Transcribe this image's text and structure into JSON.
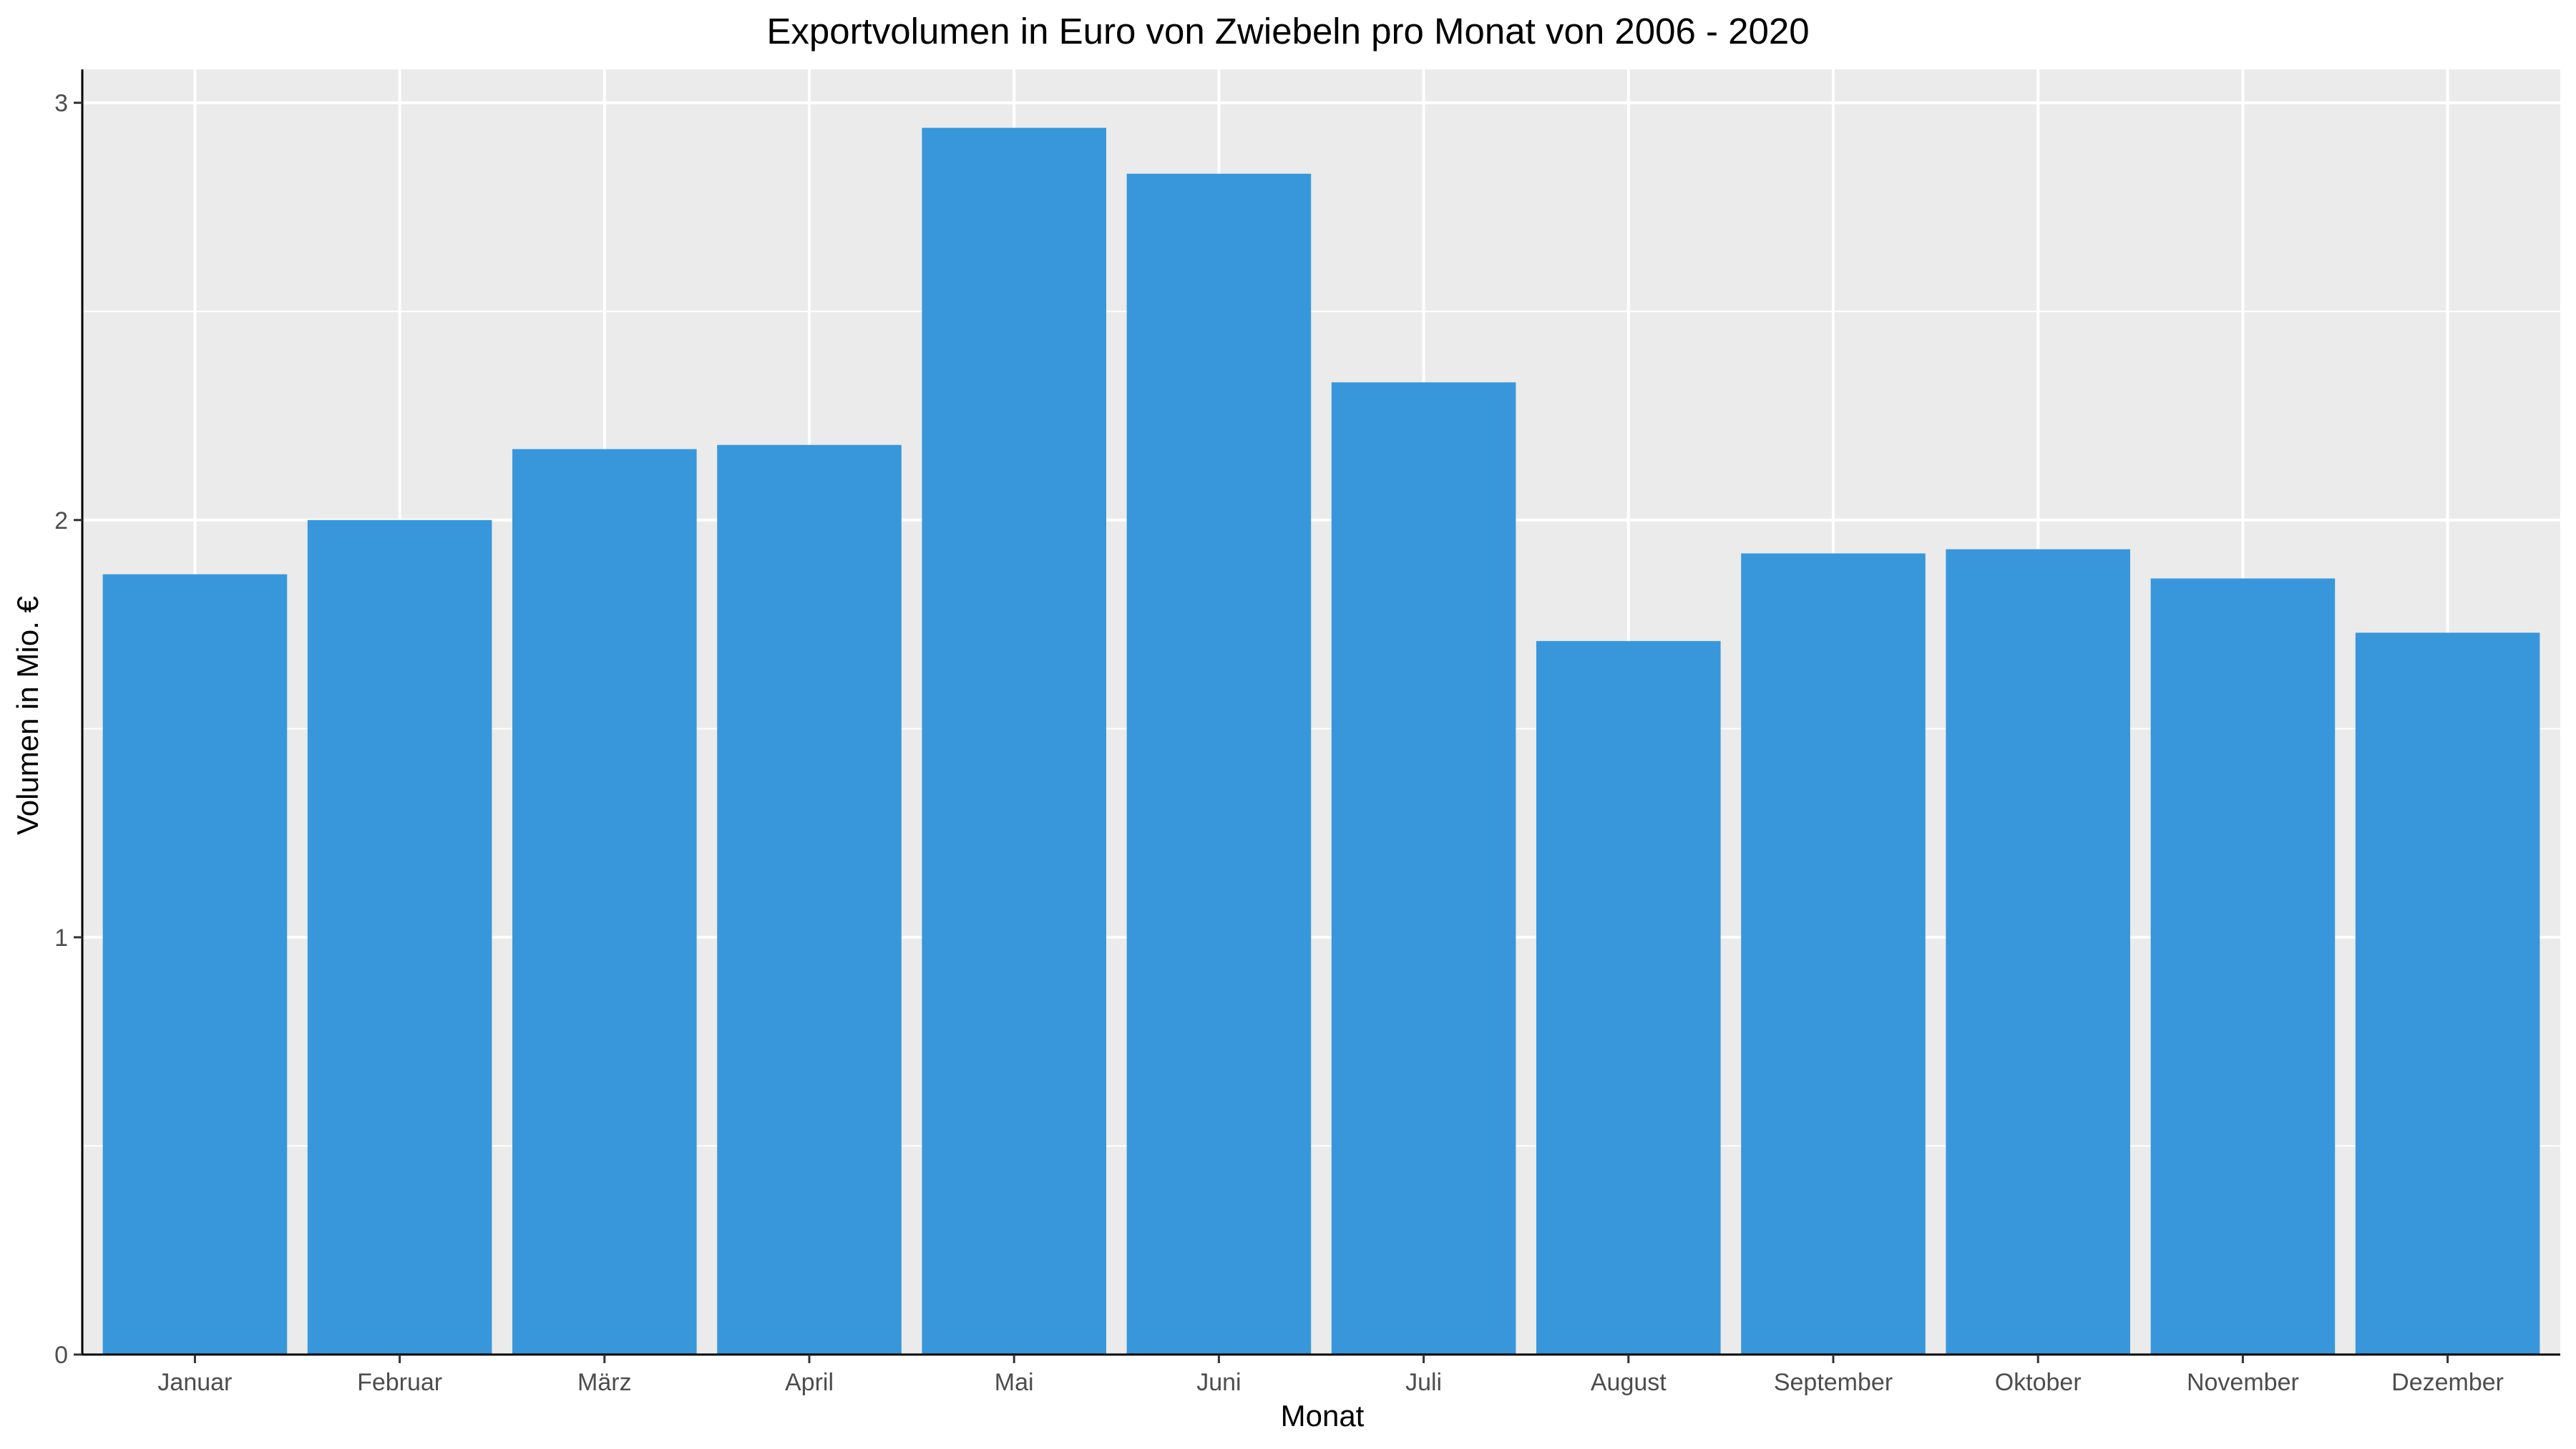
{
  "chart_data": {
    "type": "bar",
    "title": "Exportvolumen in Euro von Zwiebeln pro Monat von 2006 - 2020",
    "xlabel": "Monat",
    "ylabel": "Volumen in Mio. €",
    "categories": [
      "Januar",
      "Februar",
      "März",
      "April",
      "Mai",
      "Juni",
      "Juli",
      "August",
      "September",
      "Oktober",
      "November",
      "Dezember"
    ],
    "values": [
      1.87,
      2.0,
      2.17,
      2.18,
      2.94,
      2.83,
      2.33,
      1.71,
      1.92,
      1.93,
      1.86,
      1.73
    ],
    "ylim": [
      0,
      3.08
    ],
    "yticks": [
      0,
      1,
      2,
      3
    ],
    "ytick_labels": [
      "0",
      "1",
      "2",
      "3"
    ],
    "grid": true,
    "legend": "none",
    "colors": {
      "bar": "#3897DB",
      "panel_background": "#EBEBEB",
      "gridline": "#FFFFFF",
      "axis_line": "#000000"
    }
  }
}
